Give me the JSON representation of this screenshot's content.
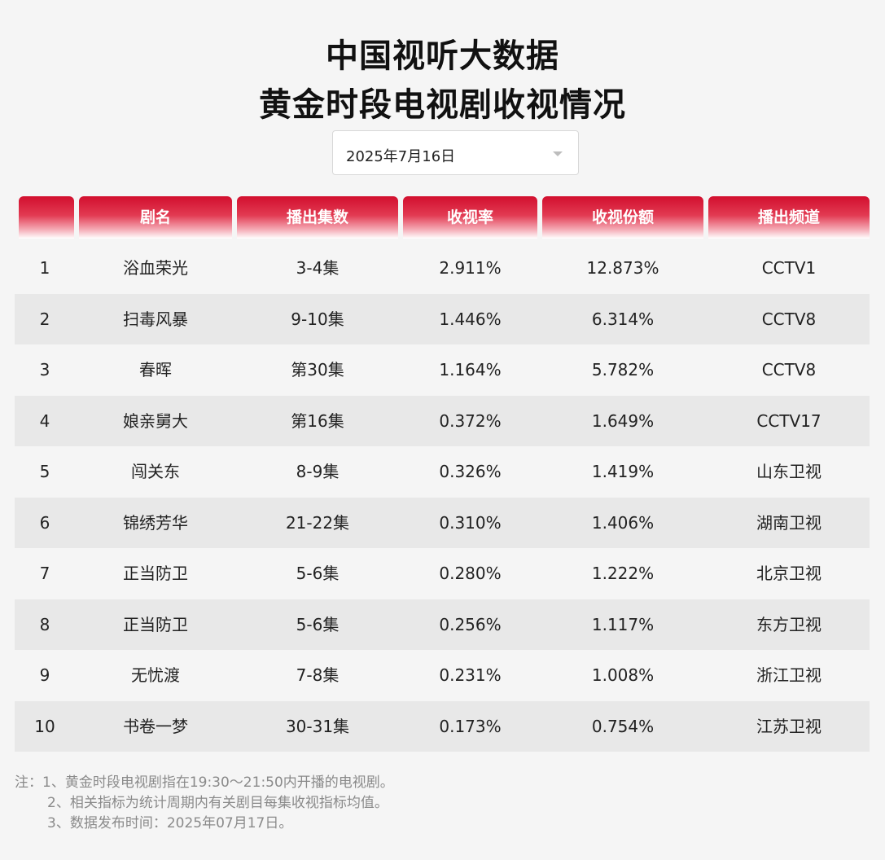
{
  "title": {
    "line1": "中国视听大数据",
    "line2": "黄金时段电视剧收视情况"
  },
  "date_select": {
    "value": "2025年7月16日"
  },
  "table": {
    "headers": [
      "",
      "剧名",
      "播出集数",
      "收视率",
      "收视份额",
      "播出频道"
    ],
    "rows": [
      [
        "1",
        "浴血荣光",
        "3-4集",
        "2.911%",
        "12.873%",
        "CCTV1"
      ],
      [
        "2",
        "扫毒风暴",
        "9-10集",
        "1.446%",
        "6.314%",
        "CCTV8"
      ],
      [
        "3",
        "春晖",
        "第30集",
        "1.164%",
        "5.782%",
        "CCTV8"
      ],
      [
        "4",
        "娘亲舅大",
        "第16集",
        "0.372%",
        "1.649%",
        "CCTV17"
      ],
      [
        "5",
        "闯关东",
        "8-9集",
        "0.326%",
        "1.419%",
        "山东卫视"
      ],
      [
        "6",
        "锦绣芳华",
        "21-22集",
        "0.310%",
        "1.406%",
        "湖南卫视"
      ],
      [
        "7",
        "正当防卫",
        "5-6集",
        "0.280%",
        "1.222%",
        "北京卫视"
      ],
      [
        "8",
        "正当防卫",
        "5-6集",
        "0.256%",
        "1.117%",
        "东方卫视"
      ],
      [
        "9",
        "无忧渡",
        "7-8集",
        "0.231%",
        "1.008%",
        "浙江卫视"
      ],
      [
        "10",
        "书卷一梦",
        "30-31集",
        "0.173%",
        "0.754%",
        "江苏卫视"
      ]
    ]
  },
  "notes": {
    "prefix": "注：",
    "lines": [
      "1、黄金时段电视剧指在19:30～21:50内开播的电视剧。",
      "2、相关指标为统计周期内有关剧目每集收视指标均值。",
      "3、数据发布时间：2025年07月17日。"
    ]
  },
  "colors": {
    "header_red": "#d20f2e",
    "row_alt": "#e8e8e8",
    "background": "#f5f5f5"
  },
  "icons": {
    "dropdown": "chevron-down-icon"
  }
}
